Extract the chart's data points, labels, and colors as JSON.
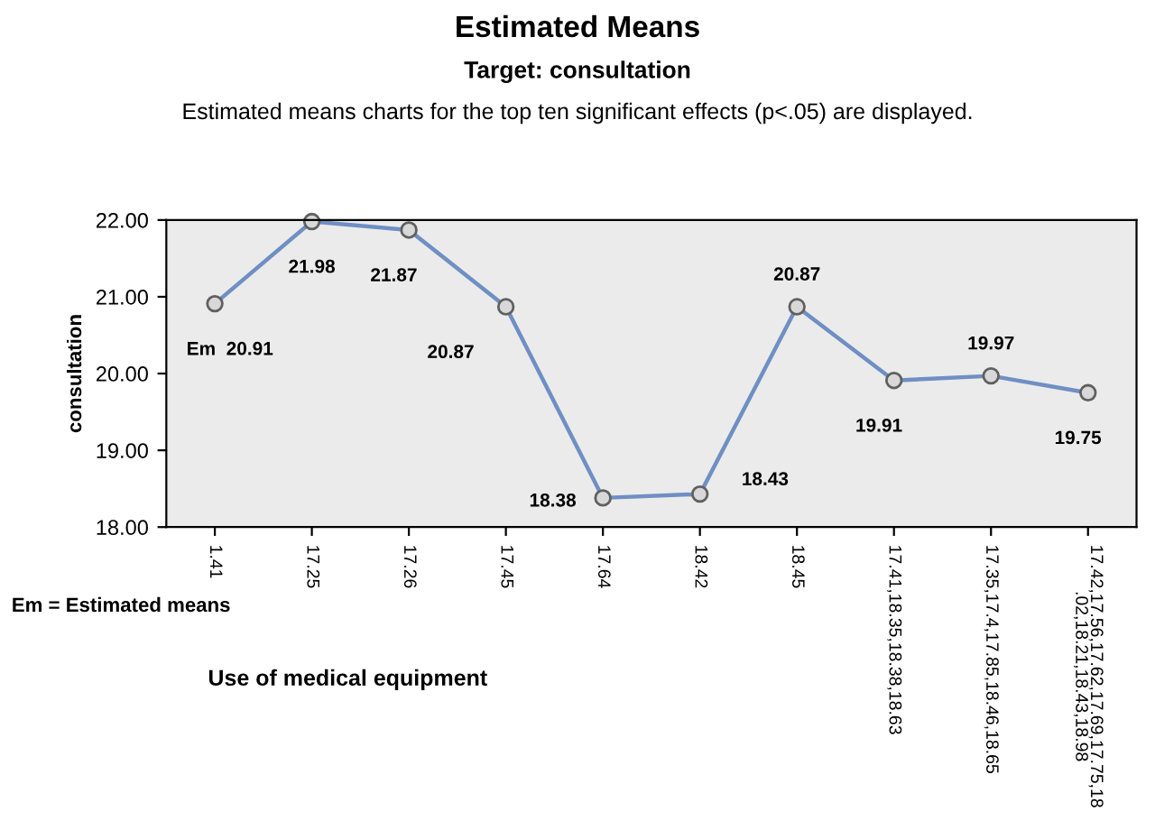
{
  "chart_data": {
    "type": "line",
    "title": "Estimated Means",
    "subtitle": "Target: consultation",
    "xlabel": "Use of medical equipment",
    "ylabel": "consultation",
    "categories": [
      "1.41",
      "17.25",
      "17.26",
      "17.45",
      "17.64",
      "18.42",
      "18.45",
      "17.41,18.35,18.38,18.63",
      "17.35,17.4,17.85,18.46,18.65",
      "17.42,17.56,17.62,17.69,17.75,18\n.02,18.21,18.43,18.98"
    ],
    "series": [
      {
        "color": "#6f8fc4",
        "values": [
          20.91,
          21.98,
          21.87,
          20.87,
          18.38,
          18.43,
          20.87,
          19.91,
          19.97,
          19.75
        ],
        "value_labels": [
          "Em  20.91",
          "21.98",
          "21.87",
          "20.87",
          "18.38",
          "18.43",
          "20.87",
          "19.91",
          "19.97",
          "19.75"
        ]
      }
    ],
    "ylim": [
      18,
      22
    ],
    "yticks": [
      {
        "value": 18,
        "label": "18.00"
      },
      {
        "value": 19,
        "label": "19.00"
      },
      {
        "value": 20,
        "label": "20.00"
      },
      {
        "value": 21,
        "label": "21.00"
      },
      {
        "value": 22,
        "label": "22.00"
      }
    ],
    "marker": "circle",
    "line_style": "solid",
    "grid": false,
    "legend": false,
    "annotations": [
      "Estimated means charts for the top ten significant effects (p<.05) are displayed.",
      "Em = Estimated means"
    ]
  }
}
